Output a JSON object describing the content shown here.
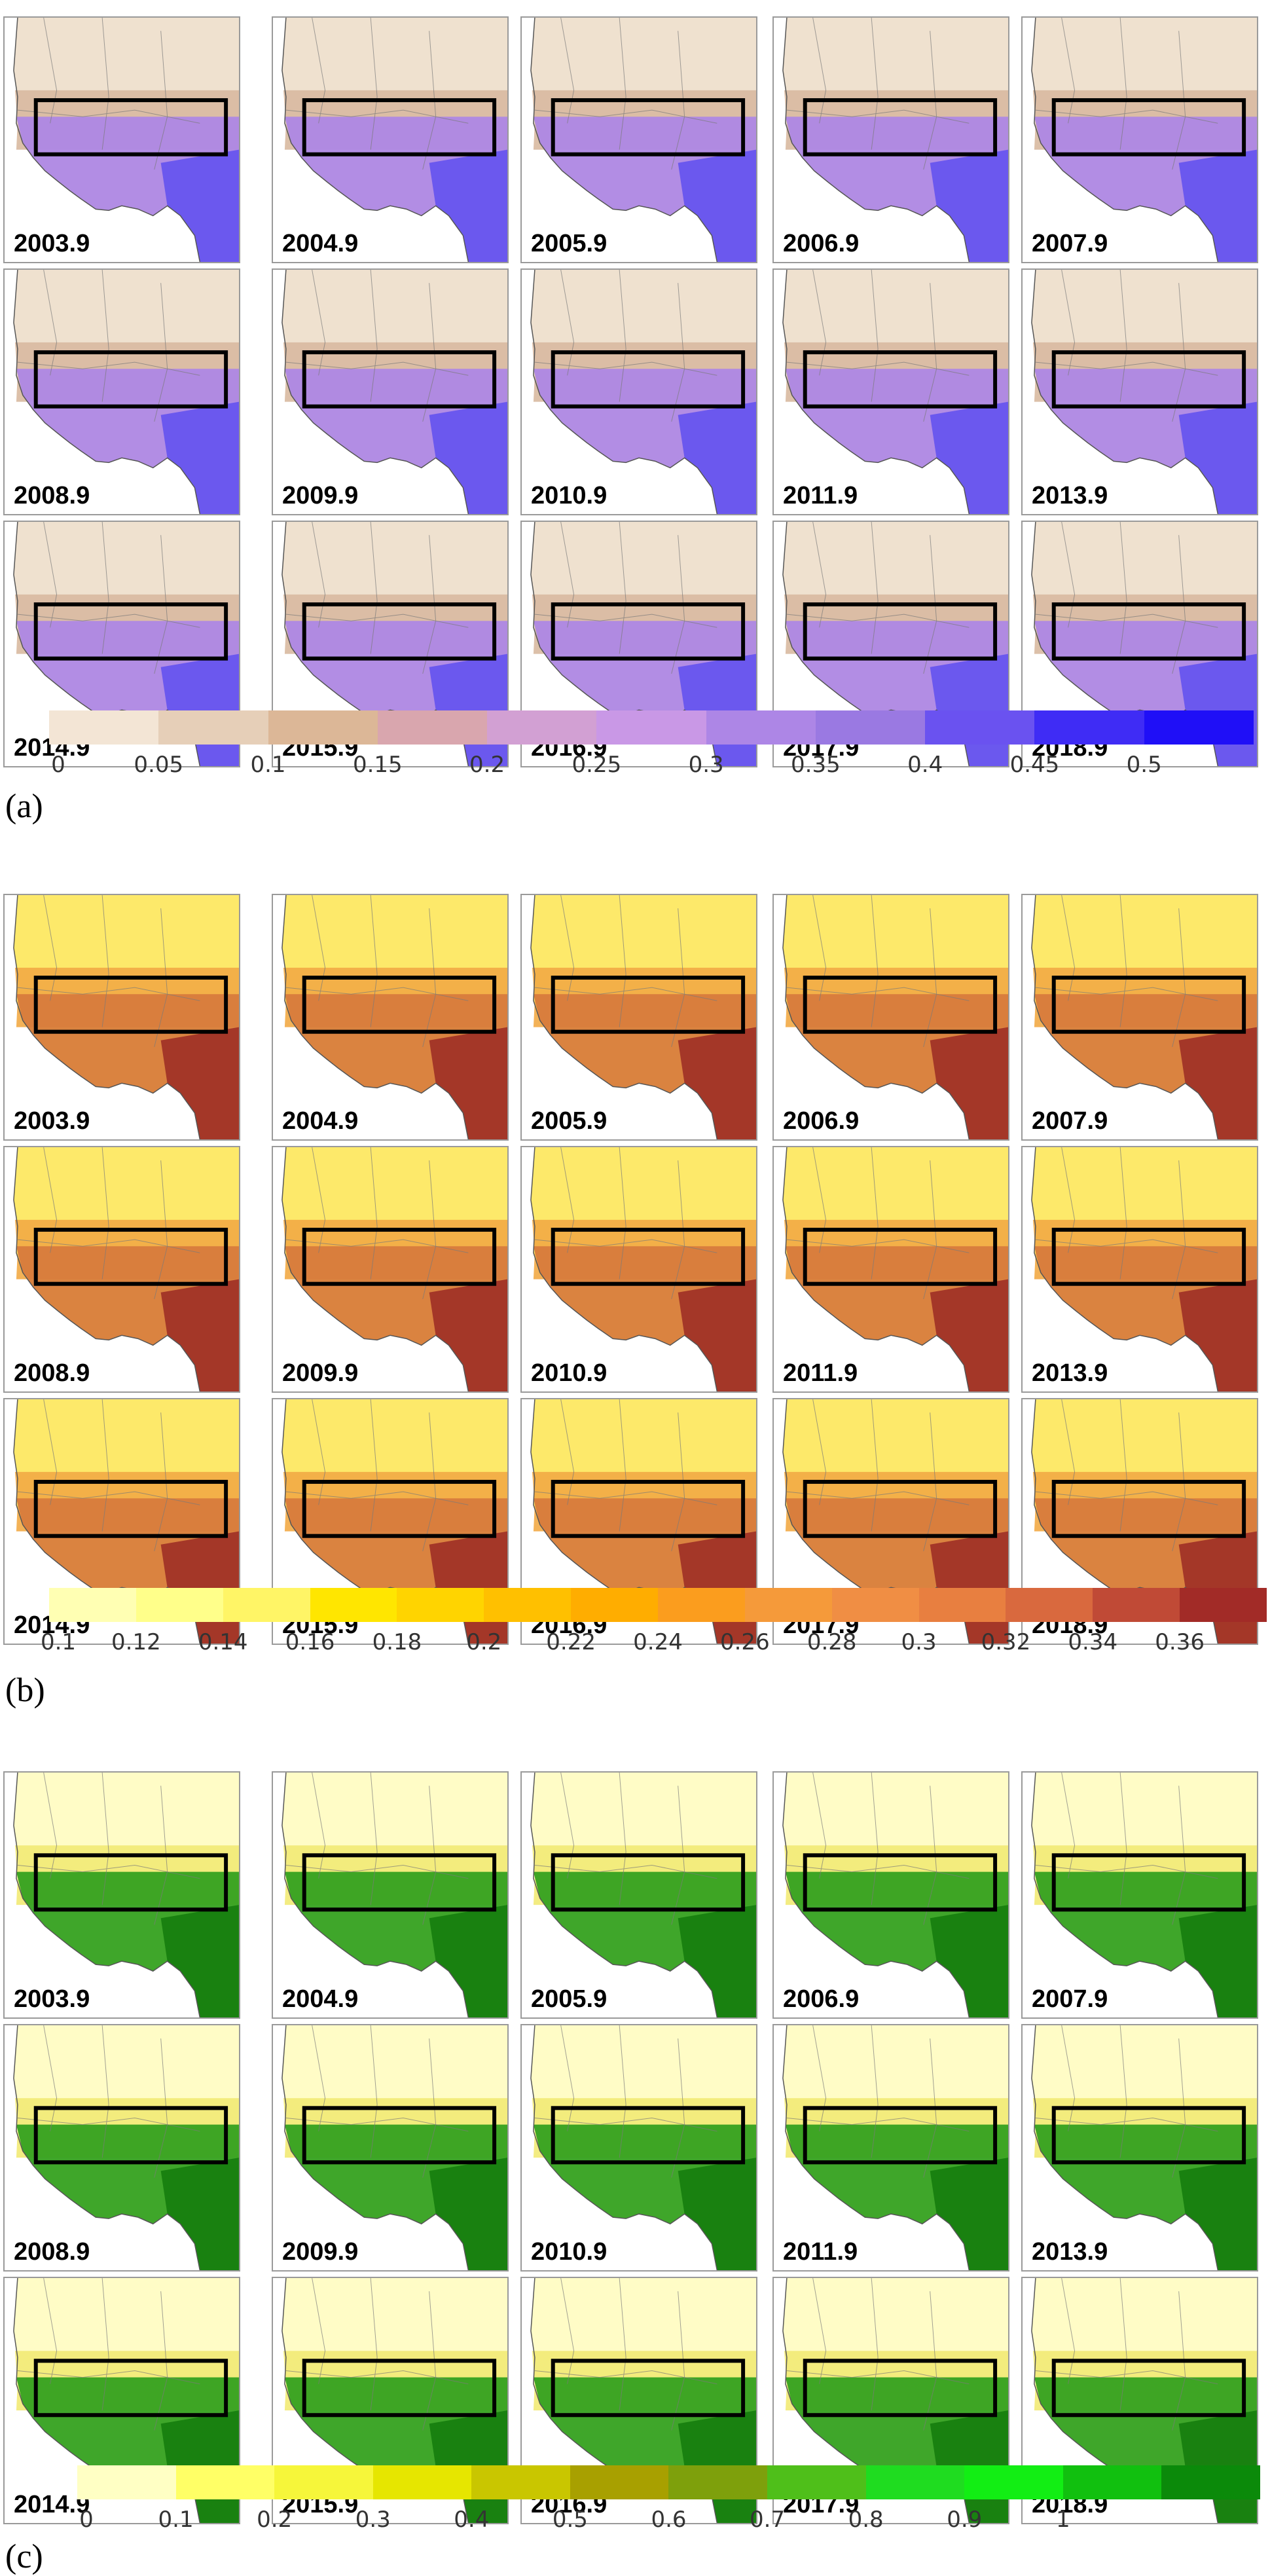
{
  "panels": [
    {
      "id": "a",
      "caption": "(a)",
      "theme": {
        "ocean": "#ffffff",
        "north": "#efe1cf",
        "mid": "#d8b9a0",
        "south": "#ad86e6",
        "deep": "#5e4ff0"
      },
      "years": [
        "2003.9",
        "2004.9",
        "2005.9",
        "2006.9",
        "2007.9",
        "2008.9",
        "2009.9",
        "2010.9",
        "2011.9",
        "2013.9",
        "2014.9",
        "2015.9",
        "2016.9",
        "2017.9",
        "2018.9"
      ],
      "colorbar": [
        "#f3e5d5",
        "#e6cfb8",
        "#dcb797",
        "#d9a6ae",
        "#d2a0d3",
        "#c998e6",
        "#ad86e6",
        "#9a79e2",
        "#6a52f0",
        "#3f2cf5",
        "#1f0ff7"
      ],
      "ticks": [
        "0",
        "0.05",
        "0.1",
        "0.15",
        "0.2",
        "0.25",
        "0.3",
        "0.35",
        "0.4",
        "0.45",
        "0.5"
      ]
    },
    {
      "id": "b",
      "caption": "(b)",
      "theme": {
        "ocean": "#ffffff",
        "north": "#fde96a",
        "mid": "#f2aa45",
        "south": "#d77a3d",
        "deep": "#9a2a24"
      },
      "years": [
        "2003.9",
        "2004.9",
        "2005.9",
        "2006.9",
        "2007.9",
        "2008.9",
        "2009.9",
        "2010.9",
        "2011.9",
        "2013.9",
        "2014.9",
        "2015.9",
        "2016.9",
        "2017.9",
        "2018.9"
      ],
      "colorbar": [
        "#ffffb3",
        "#ffff8a",
        "#fff566",
        "#ffe600",
        "#ffd400",
        "#ffc000",
        "#ffad00",
        "#fb9d1e",
        "#f59a3a",
        "#f08e44",
        "#e87f40",
        "#d9693e",
        "#c04a36",
        "#a22b27"
      ],
      "ticks": [
        "0.1",
        "0.12",
        "0.14",
        "0.16",
        "0.18",
        "0.2",
        "0.22",
        "0.24",
        "0.26",
        "0.28",
        "0.3",
        "0.32",
        "0.34",
        "0.36"
      ]
    },
    {
      "id": "c",
      "caption": "(c)",
      "theme": {
        "ocean": "#ffffff",
        "north": "#fffcc6",
        "mid": "#f2ea74",
        "south": "#2f9e1c",
        "deep": "#137a0c"
      },
      "years": [
        "2003.9",
        "2004.9",
        "2005.9",
        "2006.9",
        "2007.9",
        "2008.9",
        "2009.9",
        "2010.9",
        "2011.9",
        "2013.9",
        "2014.9",
        "2015.9",
        "2016.9",
        "2017.9",
        "2018.9"
      ],
      "colorbar": [
        "#ffffc4",
        "#ffff66",
        "#f6f63a",
        "#e6e600",
        "#c9c600",
        "#a8a000",
        "#7ea00c",
        "#4fbf1a",
        "#1fdc20",
        "#12ee14",
        "#11c00f",
        "#0b8a0a"
      ],
      "ticks": [
        "0",
        "0.1",
        "0.2",
        "0.3",
        "0.4",
        "0.5",
        "0.6",
        "0.7",
        "0.8",
        "0.9",
        "1"
      ]
    }
  ]
}
